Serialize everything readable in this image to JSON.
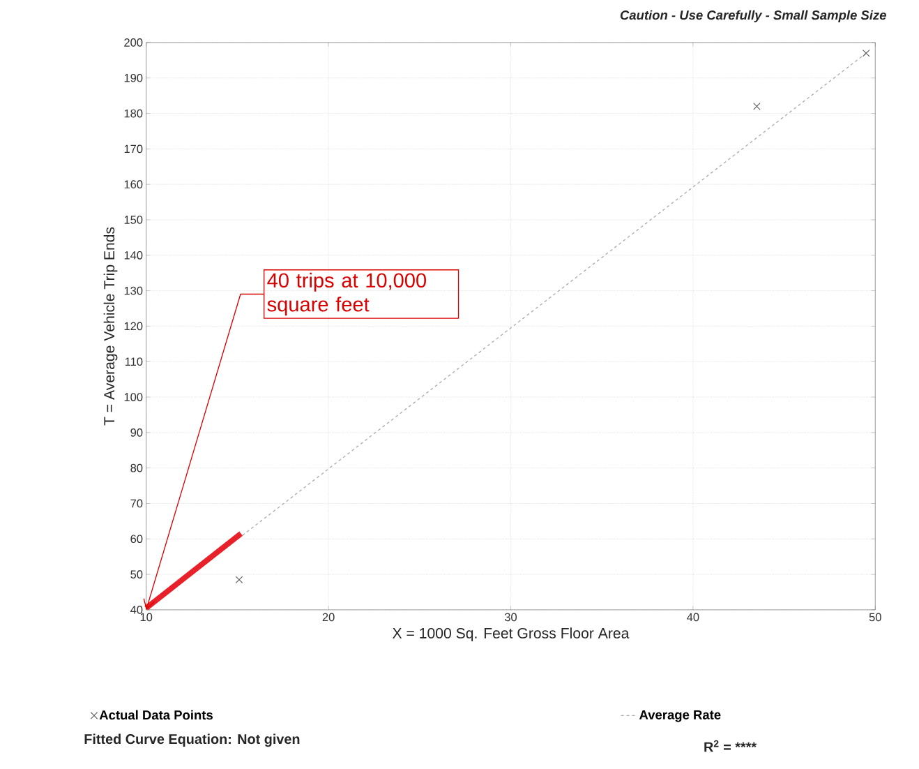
{
  "chart_data": {
    "type": "scatter",
    "xlabel": "X = 1000 Sq. Feet Gross Floor Area",
    "ylabel": "T = Average Vehicle Trip Ends",
    "series": [
      {
        "name": "Actual Data Points",
        "marker": "cross",
        "color": "#555555",
        "x": [
          15.1,
          43.5,
          49.5
        ],
        "values": [
          48.5,
          182,
          197
        ]
      },
      {
        "name": "Average Rate",
        "type": "line",
        "line_style": "dashed",
        "color": "#aaaaaa",
        "x": [
          10,
          49.5
        ],
        "values": [
          40,
          197
        ]
      },
      {
        "type": "line",
        "line_style": "solid",
        "color": "#e8202a",
        "x": [
          10,
          15.2
        ],
        "values": [
          40.5,
          61.5
        ]
      }
    ],
    "xlim": [
      10,
      50
    ],
    "ylim": [
      40,
      200
    ],
    "xticks": [
      10,
      20,
      30,
      40,
      50
    ],
    "yticks": [
      40,
      50,
      60,
      70,
      80,
      90,
      100,
      110,
      120,
      130,
      140,
      150,
      160,
      170,
      180,
      190,
      200
    ],
    "grid": true,
    "legend": "bottom",
    "annotations": [
      "Caution - Use Carefully - Small Sample Size",
      {
        "text": "40 trips at 10,000 square feet",
        "x": 10,
        "y": 40
      },
      "Fitted Curve Equation:  Not given",
      "R$^{2}$ = ****"
    ]
  }
}
